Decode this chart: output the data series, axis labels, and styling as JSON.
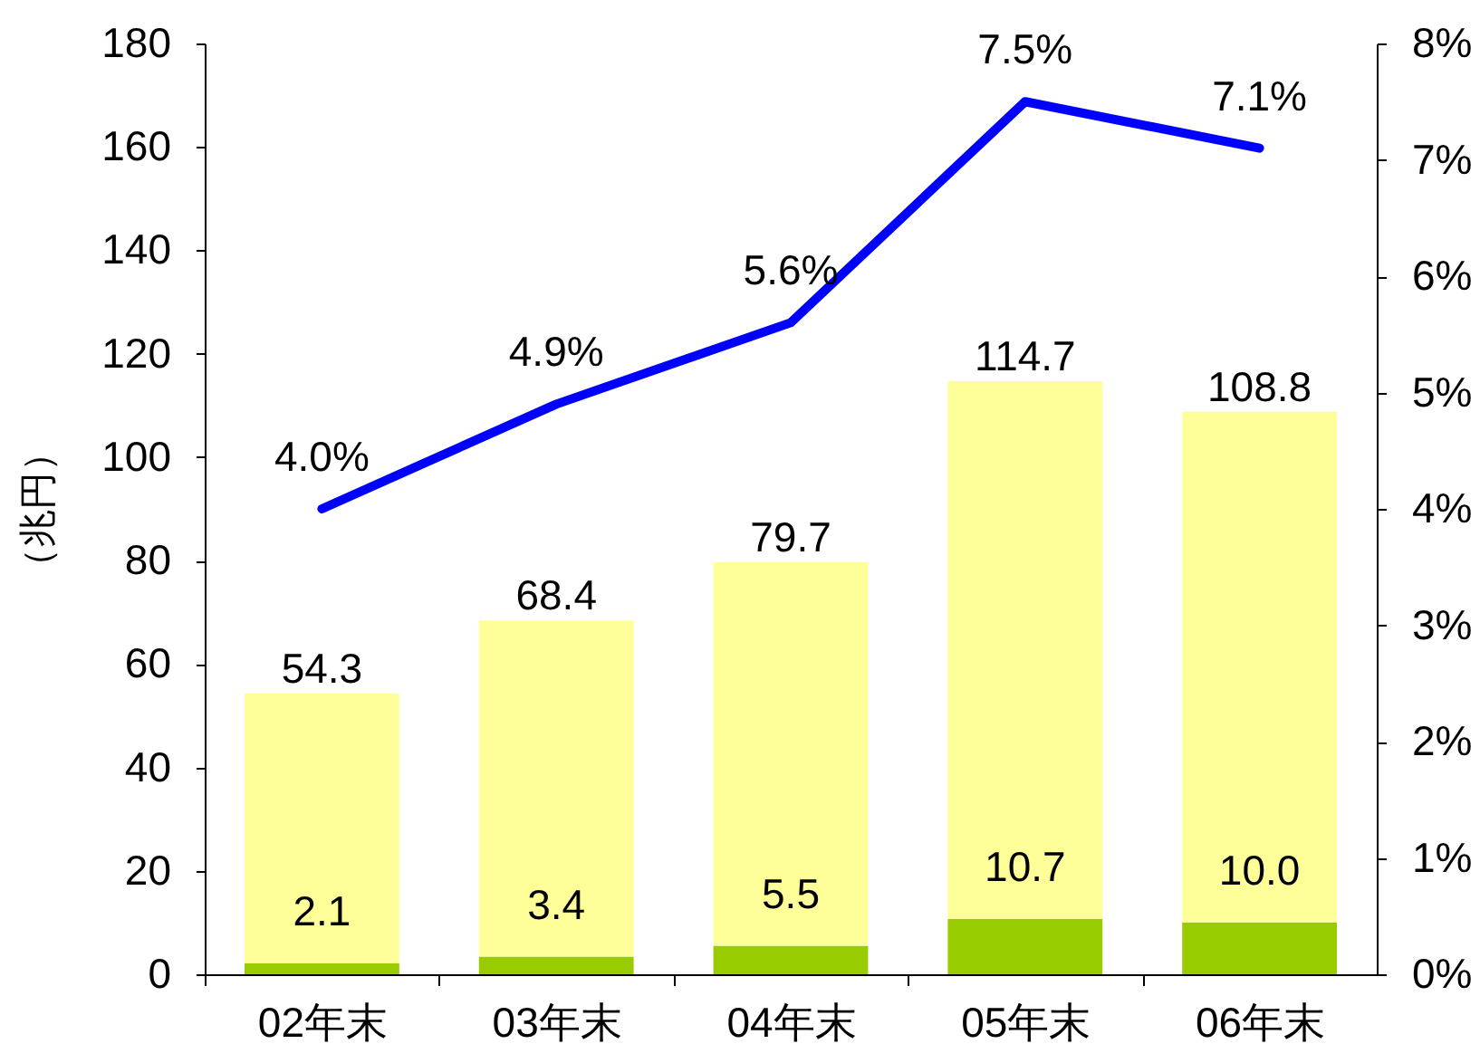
{
  "chart_data": {
    "type": "bar",
    "stacked": true,
    "categories": [
      "02年末",
      "03年末",
      "04年末",
      "05年末",
      "06年末"
    ],
    "ylabel": "（兆円）",
    "ylim": [
      0,
      180
    ],
    "yticks": [
      0,
      20,
      40,
      60,
      80,
      100,
      120,
      140,
      160,
      180
    ],
    "y2lim": [
      0,
      8
    ],
    "y2ticks": [
      {
        "value": 0,
        "label": "0%"
      },
      {
        "value": 1,
        "label": "1%"
      },
      {
        "value": 2,
        "label": "2%"
      },
      {
        "value": 3,
        "label": "3%"
      },
      {
        "value": 4,
        "label": "4%"
      },
      {
        "value": 5,
        "label": "5%"
      },
      {
        "value": 6,
        "label": "6%"
      },
      {
        "value": 7,
        "label": "7%"
      },
      {
        "value": 8,
        "label": "8%"
      }
    ],
    "series": [
      {
        "color": "#99cc00",
        "values": [
          2.1,
          3.4,
          5.5,
          10.7,
          10.0
        ],
        "value_labels": [
          "2.1",
          "3.4",
          "5.5",
          "10.7",
          "10.0"
        ]
      },
      {
        "color": "#ffff99",
        "values": [
          52.2,
          65.0,
          74.2,
          104.0,
          98.8
        ]
      },
      {
        "type": "line",
        "axis": "y2",
        "color": "#0000ff",
        "line_style": "solid",
        "values": [
          4.0,
          4.9,
          5.6,
          7.5,
          7.1
        ],
        "value_labels": [
          "4.0%",
          "4.9%",
          "5.6%",
          "7.5%",
          "7.1%"
        ]
      }
    ],
    "totals": [
      "54.3",
      "68.4",
      "79.7",
      "114.7",
      "108.8"
    ]
  }
}
